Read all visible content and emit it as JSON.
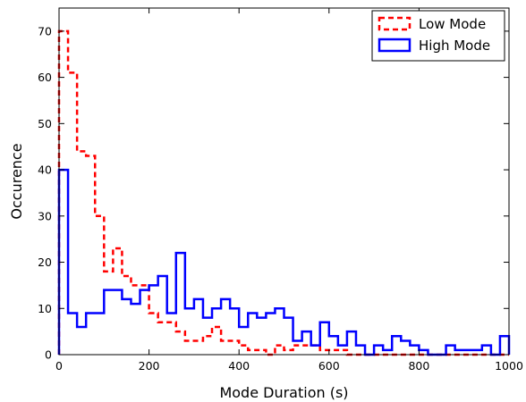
{
  "chart_data": {
    "type": "step-histogram",
    "xlabel": "Mode Duration (s)",
    "ylabel": "Occurence",
    "xlim": [
      0,
      1000
    ],
    "ylim": [
      0,
      75
    ],
    "xticks": [
      0,
      200,
      400,
      600,
      800,
      1000
    ],
    "yticks": [
      0,
      10,
      20,
      30,
      40,
      50,
      60,
      70
    ],
    "grid": false,
    "legend_position": "top-right",
    "bin_edges": [
      0,
      20,
      40,
      60,
      80,
      100,
      120,
      140,
      160,
      180,
      200,
      220,
      240,
      260,
      280,
      300,
      320,
      340,
      360,
      380,
      400,
      420,
      440,
      460,
      480,
      500,
      520,
      540,
      560,
      580,
      600,
      620,
      640,
      660,
      680,
      700,
      720,
      740,
      760,
      780,
      800,
      820,
      840,
      860,
      880,
      900,
      920,
      940,
      960,
      980,
      1000
    ],
    "series": [
      {
        "name": "Low Mode",
        "color": "#ff0000",
        "style": "dashed",
        "values": [
          70,
          61,
          44,
          43,
          30,
          18,
          23,
          17,
          15,
          15,
          9,
          7,
          7,
          5,
          3,
          3,
          4,
          6,
          3,
          3,
          2,
          1,
          1,
          0,
          2,
          1,
          2,
          2,
          2,
          1,
          1,
          1,
          0,
          0,
          0,
          0,
          0,
          0,
          0,
          0,
          0,
          0,
          0,
          0,
          0,
          0,
          0,
          0,
          0,
          0
        ]
      },
      {
        "name": "High Mode",
        "color": "#0000ff",
        "style": "solid",
        "values": [
          40,
          9,
          6,
          9,
          9,
          14,
          14,
          12,
          11,
          14,
          15,
          17,
          9,
          22,
          10,
          12,
          8,
          10,
          12,
          10,
          6,
          9,
          8,
          9,
          10,
          8,
          3,
          5,
          2,
          7,
          4,
          2,
          5,
          2,
          0,
          2,
          1,
          4,
          3,
          2,
          1,
          0,
          0,
          2,
          1,
          1,
          1,
          2,
          0,
          4
        ]
      }
    ]
  }
}
